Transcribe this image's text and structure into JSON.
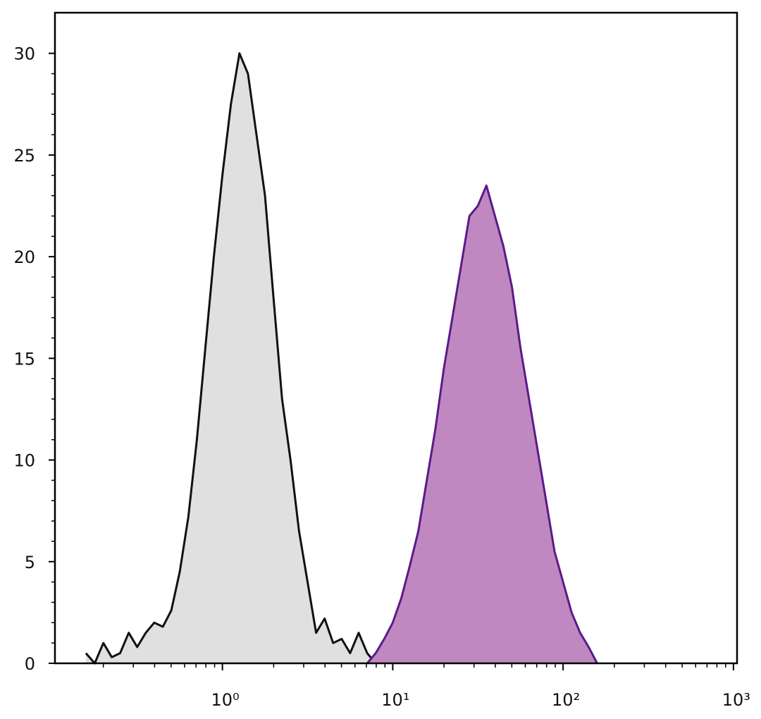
{
  "chart_data": {
    "type": "histogram-overlay",
    "xscale": "log",
    "xlim": [
      0.104,
      1050
    ],
    "ylim": [
      0,
      32
    ],
    "xticks": [
      {
        "value": 1,
        "label": "10⁰"
      },
      {
        "value": 10,
        "label": "10¹"
      },
      {
        "value": 100,
        "label": "10²"
      },
      {
        "value": 1000,
        "label": "10³"
      }
    ],
    "yticks": [
      0,
      5,
      10,
      15,
      20,
      25,
      30
    ],
    "series": [
      {
        "color": "#111111",
        "fill": "#e0e0e0",
        "x": [
          0.158,
          0.178,
          0.2,
          0.224,
          0.251,
          0.282,
          0.316,
          0.355,
          0.398,
          0.447,
          0.501,
          0.562,
          0.631,
          0.708,
          0.794,
          0.891,
          1.0,
          1.122,
          1.259,
          1.413,
          1.585,
          1.778,
          1.995,
          2.239,
          2.512,
          2.818,
          3.162,
          3.548,
          3.981,
          4.467,
          5.012,
          5.623,
          6.31,
          7.079,
          7.943
        ],
        "values": [
          0.5,
          0,
          1,
          0.3,
          0.5,
          1.5,
          0.8,
          1.5,
          2,
          1.8,
          2.6,
          4.5,
          7.2,
          11,
          15.5,
          20,
          24,
          27.5,
          30,
          29,
          26,
          23,
          18,
          13,
          10,
          6.5,
          4,
          1.5,
          2.2,
          1,
          1.2,
          0.5,
          1.5,
          0.5,
          0
        ]
      },
      {
        "color": "#5a1a8a",
        "fill": "#c088c0",
        "x": [
          7.079,
          7.943,
          8.913,
          10.0,
          11.22,
          12.59,
          14.13,
          15.85,
          17.78,
          19.95,
          22.39,
          25.12,
          28.18,
          31.62,
          35.48,
          39.81,
          44.67,
          50.12,
          56.23,
          63.1,
          70.79,
          79.43,
          89.13,
          100.0,
          112.2,
          125.9,
          141.3,
          158.5
        ],
        "values": [
          0,
          0.5,
          1.2,
          2,
          3.2,
          4.8,
          6.5,
          9,
          11.5,
          14.5,
          17,
          19.5,
          22,
          22.5,
          23.5,
          22,
          20.5,
          18.5,
          15.5,
          13,
          10.5,
          8,
          5.5,
          4,
          2.5,
          1.5,
          0.8,
          0
        ]
      }
    ]
  }
}
